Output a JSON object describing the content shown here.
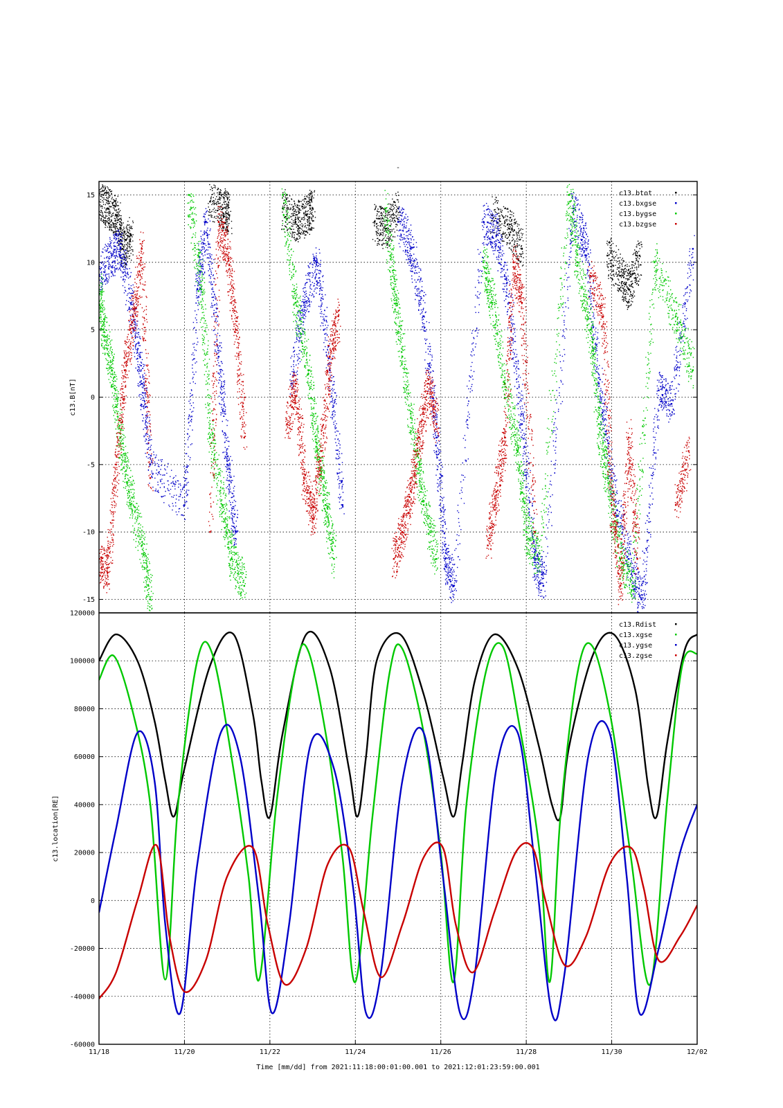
{
  "figure_title": "-",
  "footer": "Time [mm/dd]  from 2021:11:18:00:01:00.001  to  2021:12:01:23:59:00.001",
  "chart_data": [
    {
      "type": "scatter",
      "ylabel": "c13.B[nT]",
      "xlabel": "",
      "xlim": [
        0,
        14
      ],
      "ylim": [
        -16,
        16
      ],
      "grid": true,
      "legend_placement": "top-right",
      "yticks": [
        -15,
        -10,
        -5,
        0,
        5,
        10,
        15
      ],
      "ytick_labels": [
        "-15",
        "-10",
        "-5",
        "0",
        "5",
        "10",
        "15"
      ],
      "series": [
        {
          "name": "c13.btot",
          "color": "#000000",
          "x": [
            0.0,
            0.2,
            0.4,
            0.55,
            0.75,
            2.6,
            2.9,
            3.05,
            4.3,
            4.6,
            4.85,
            5.0,
            6.45,
            6.7,
            7.0,
            9.2,
            9.6,
            9.9,
            11.9,
            12.2,
            12.4,
            12.65
          ],
          "y": [
            14.5,
            14.0,
            13.5,
            11.0,
            12.0,
            14.5,
            14.0,
            13.5,
            14.0,
            13.0,
            13.5,
            14.0,
            13.0,
            12.5,
            14.0,
            13.5,
            12.5,
            11.0,
            10.5,
            9.0,
            8.0,
            10.5
          ]
        },
        {
          "name": "c13.bxgse",
          "color": "#0000c8",
          "x": [
            0.0,
            0.3,
            0.5,
            0.8,
            1.0,
            1.2,
            2.0,
            2.3,
            2.5,
            2.8,
            3.0,
            3.2,
            4.5,
            4.8,
            5.1,
            5.4,
            5.7,
            7.0,
            7.3,
            7.6,
            7.9,
            8.1,
            8.3,
            9.0,
            9.3,
            9.6,
            9.9,
            10.2,
            10.4,
            11.1,
            11.4,
            11.7,
            12.0,
            12.4,
            12.7,
            13.1,
            13.4,
            13.9
          ],
          "y": [
            9.0,
            10.5,
            11.0,
            6.0,
            1.0,
            -5.0,
            -8.0,
            8.0,
            13.0,
            3.0,
            -5.0,
            -10.0,
            1.0,
            7.0,
            10.0,
            2.0,
            -8.0,
            13.0,
            11.0,
            6.0,
            -3.0,
            -12.0,
            -14.0,
            13.0,
            12.0,
            7.0,
            -2.0,
            -12.0,
            -14.0,
            14.0,
            11.0,
            1.0,
            -6.0,
            -12.0,
            -15.0,
            0.5,
            -0.5,
            11.0
          ]
        },
        {
          "name": "c13.bygse",
          "color": "#00c800",
          "x": [
            0.0,
            0.1,
            0.3,
            0.5,
            0.7,
            1.0,
            1.2,
            2.1,
            2.4,
            2.6,
            2.9,
            3.1,
            3.4,
            4.3,
            4.6,
            4.9,
            5.1,
            5.3,
            5.5,
            6.7,
            6.9,
            7.1,
            7.4,
            7.6,
            7.9,
            9.0,
            9.2,
            9.5,
            9.8,
            10.0,
            10.3,
            11.0,
            11.2,
            11.5,
            11.7,
            11.9,
            12.2,
            12.5,
            13.0,
            13.5,
            13.9
          ],
          "y": [
            8.0,
            5.0,
            2.0,
            -3.0,
            -7.0,
            -11.0,
            -15.0,
            15.0,
            8.0,
            -3.0,
            -8.0,
            -12.0,
            -14.0,
            15.0,
            7.0,
            2.0,
            -4.0,
            -8.0,
            -12.0,
            14.0,
            8.0,
            3.0,
            -4.0,
            -8.0,
            -12.0,
            10.0,
            7.0,
            1.0,
            -4.0,
            -10.0,
            -12.0,
            15.0,
            10.0,
            5.0,
            -2.0,
            -6.0,
            -12.0,
            -14.0,
            10.0,
            6.0,
            2.0
          ]
        },
        {
          "name": "c13.bzgse",
          "color": "#c80000",
          "x": [
            0.0,
            0.2,
            0.4,
            0.6,
            0.8,
            1.0,
            1.2,
            2.6,
            2.8,
            3.0,
            3.2,
            3.4,
            4.4,
            4.6,
            4.8,
            5.0,
            5.2,
            5.4,
            5.6,
            6.9,
            7.1,
            7.3,
            7.5,
            7.7,
            7.9,
            9.1,
            9.3,
            9.5,
            9.7,
            9.9,
            10.2,
            11.5,
            11.8,
            12.0,
            12.2,
            12.4,
            12.6,
            13.5,
            13.8
          ],
          "y": [
            -12.0,
            -13.0,
            -5.0,
            2.0,
            6.0,
            11.0,
            -6.0,
            -10.0,
            13.0,
            11.0,
            5.0,
            -3.0,
            -2.0,
            1.0,
            -6.0,
            -9.0,
            -4.0,
            3.0,
            6.0,
            -12.0,
            -10.0,
            -7.0,
            -3.0,
            1.0,
            -2.0,
            -11.0,
            -7.0,
            -3.0,
            10.0,
            7.0,
            -10.0,
            9.0,
            6.0,
            -8.0,
            -14.0,
            -3.0,
            -12.0,
            -8.0,
            -4.0
          ]
        }
      ]
    },
    {
      "type": "line",
      "ylabel": "c13.location[RE]",
      "xlabel": "Time [mm/dd]",
      "xlim": [
        0,
        14
      ],
      "ylim": [
        -60000,
        120000
      ],
      "grid": true,
      "legend_placement": "top-right",
      "xticks": [
        0,
        2,
        4,
        6,
        8,
        10,
        12,
        14
      ],
      "xtick_labels": [
        "11/18",
        "11/20",
        "11/22",
        "11/24",
        "11/26",
        "11/28",
        "11/30",
        "12/02"
      ],
      "yticks": [
        -60000,
        -40000,
        -20000,
        0,
        20000,
        40000,
        60000,
        80000,
        100000,
        120000
      ],
      "ytick_labels": [
        "-60000",
        "-40000",
        "-20000",
        "0",
        "20000",
        "40000",
        "60000",
        "80000",
        "100000",
        "120000"
      ],
      "series": [
        {
          "name": "c13.Rdist",
          "color": "#000000",
          "x": [
            0.0,
            0.4,
            0.9,
            1.3,
            1.55,
            1.75,
            2.0,
            2.6,
            3.15,
            3.6,
            3.8,
            4.0,
            4.3,
            4.85,
            5.4,
            5.85,
            6.05,
            6.25,
            6.5,
            7.05,
            7.6,
            8.05,
            8.3,
            8.5,
            8.8,
            9.25,
            9.8,
            10.3,
            10.6,
            10.8,
            11.0,
            11.55,
            12.05,
            12.55,
            12.85,
            13.05,
            13.3,
            13.7,
            14.0
          ],
          "y": [
            100000,
            111000,
            100000,
            75000,
            50000,
            35000,
            55000,
            98000,
            111000,
            78000,
            50000,
            35000,
            70000,
            111000,
            97000,
            55000,
            35000,
            60000,
            100000,
            111000,
            86000,
            52000,
            35000,
            57000,
            92000,
            111000,
            97000,
            64000,
            40000,
            35000,
            64000,
            102000,
            111000,
            88000,
            48000,
            35000,
            66000,
            104000,
            111000
          ]
        },
        {
          "name": "c13.xgse",
          "color": "#00c800",
          "x": [
            0.0,
            0.35,
            0.8,
            1.2,
            1.55,
            1.85,
            2.3,
            2.65,
            3.1,
            3.5,
            3.75,
            4.15,
            4.6,
            4.9,
            5.35,
            5.7,
            6.0,
            6.4,
            6.8,
            7.1,
            7.6,
            8.0,
            8.3,
            8.6,
            9.05,
            9.45,
            9.85,
            10.3,
            10.55,
            10.8,
            11.2,
            11.55,
            12.0,
            12.45,
            12.9,
            13.3,
            13.65,
            14.0
          ],
          "y": [
            92000,
            102000,
            78000,
            40000,
            -33000,
            40000,
            100000,
            103000,
            60000,
            10000,
            -33000,
            40000,
            97000,
            104000,
            65000,
            18000,
            -34000,
            35000,
            95000,
            105000,
            70000,
            20000,
            -34000,
            40000,
            95000,
            106000,
            72000,
            22000,
            -34000,
            35000,
            95000,
            106000,
            74000,
            18000,
            -35000,
            42000,
            98000,
            103000
          ]
        },
        {
          "name": "c13.ygse",
          "color": "#0000c8",
          "x": [
            0.0,
            0.4,
            0.9,
            1.3,
            1.55,
            1.9,
            2.3,
            2.85,
            3.3,
            3.75,
            4.05,
            4.45,
            4.95,
            5.5,
            5.95,
            6.25,
            6.6,
            7.1,
            7.6,
            8.05,
            8.45,
            8.8,
            9.3,
            9.8,
            10.2,
            10.6,
            10.9,
            11.45,
            11.95,
            12.35,
            12.65,
            13.1,
            13.6,
            14.0
          ],
          "y": [
            -5000,
            30000,
            70000,
            50000,
            -10000,
            -47000,
            15000,
            70000,
            60000,
            0,
            -47000,
            -10000,
            65000,
            55000,
            5000,
            -47000,
            -30000,
            50000,
            70000,
            10000,
            -47000,
            -30000,
            55000,
            70000,
            15000,
            -47000,
            -30000,
            60000,
            70000,
            10000,
            -47000,
            -20000,
            20000,
            40000
          ]
        },
        {
          "name": "c13.zgse",
          "color": "#c80000",
          "x": [
            0.0,
            0.4,
            0.9,
            1.35,
            1.65,
            2.0,
            2.5,
            3.0,
            3.6,
            3.95,
            4.35,
            4.85,
            5.35,
            5.85,
            6.2,
            6.6,
            7.1,
            7.6,
            8.05,
            8.35,
            8.75,
            9.25,
            9.75,
            10.15,
            10.45,
            10.9,
            11.4,
            11.95,
            12.45,
            12.75,
            13.1,
            13.6,
            14.0
          ],
          "y": [
            -41000,
            -30000,
            0,
            23000,
            -15000,
            -38000,
            -25000,
            10000,
            22000,
            -10000,
            -35000,
            -20000,
            15000,
            22000,
            -5000,
            -32000,
            -10000,
            18000,
            22000,
            -10000,
            -30000,
            -5000,
            20000,
            22000,
            0,
            -27000,
            -15000,
            15000,
            22000,
            5000,
            -25000,
            -15000,
            -2000
          ]
        }
      ]
    }
  ]
}
